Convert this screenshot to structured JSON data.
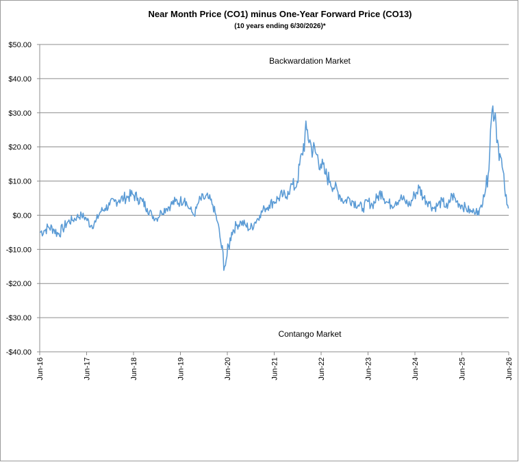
{
  "chart_data": {
    "type": "line",
    "title": "Near Month Price (CO1) minus One-Year Forward Price (CO13)",
    "subtitle": "(10 years ending  6/30/2026)*",
    "xlabel": "",
    "ylabel": "",
    "ylim": [
      -40,
      50
    ],
    "yticks": [
      50,
      40,
      30,
      20,
      10,
      0,
      -10,
      -20,
      -30,
      -40
    ],
    "ytick_labels": [
      "$50.00",
      "$40.00",
      "$30.00",
      "$20.00",
      "$10.00",
      "$0.00",
      "-$10.00",
      "-$20.00",
      "-$30.00",
      "-$40.00"
    ],
    "xlim": [
      2016.458,
      2026.458
    ],
    "xtick_labels": [
      "Jun-16",
      "Jun-17",
      "Jun-18",
      "Jun-19",
      "Jun-20",
      "Jun-21",
      "Jun-22",
      "Jun-23",
      "Jun-24",
      "Jun-25",
      "Jun-26"
    ],
    "grid": "horizontal",
    "legend": "none",
    "line_color": "#5b9bd5",
    "annotations": [
      "Backwardation Market",
      "Contango Market"
    ],
    "series": [
      {
        "x": [
          2016.46,
          2016.55,
          2016.65,
          2016.75,
          2016.85,
          2016.95,
          2017.05,
          2017.15,
          2017.25,
          2017.35,
          2017.45,
          2017.55,
          2017.65,
          2017.75,
          2017.85,
          2017.95,
          2018.05,
          2018.15,
          2018.25,
          2018.35,
          2018.45,
          2018.55,
          2018.65,
          2018.75,
          2018.85,
          2018.95,
          2019.05,
          2019.15,
          2019.25,
          2019.35,
          2019.45,
          2019.55,
          2019.6,
          2019.65,
          2019.7,
          2019.75,
          2019.8,
          2019.85,
          2019.95,
          2020.05,
          2020.15,
          2020.25,
          2020.32,
          2020.4,
          2020.45,
          2020.55,
          2020.65,
          2020.75,
          2020.85,
          2020.95,
          2021.05,
          2021.15,
          2021.25,
          2021.35,
          2021.45,
          2021.55,
          2021.65,
          2021.7,
          2021.75,
          2021.8,
          2021.85,
          2021.9,
          2021.95,
          2022.05,
          2022.15,
          2022.25,
          2022.35,
          2022.45,
          2022.55,
          2022.65,
          2022.75,
          2022.85,
          2022.95,
          2023.05,
          2023.15,
          2023.25,
          2023.35,
          2023.45,
          2023.55,
          2023.65,
          2023.75,
          2023.85,
          2023.95,
          2024.05,
          2024.15,
          2024.25,
          2024.35,
          2024.45,
          2024.55,
          2024.65,
          2024.75,
          2024.85,
          2024.95,
          2025.05,
          2025.15,
          2025.25,
          2025.35,
          2025.45,
          2025.55,
          2025.65,
          2025.72,
          2025.77,
          2025.82,
          2025.87,
          2025.92,
          2025.97,
          2026.02,
          2026.07,
          2026.12,
          2026.17,
          2026.22,
          2026.27,
          2026.32,
          2026.37,
          2026.42,
          2026.45
        ],
        "y": [
          -5,
          -4.5,
          -3.5,
          -4,
          -5.5,
          -4,
          -2,
          -1.5,
          -0.5,
          0,
          -1,
          -3,
          -2,
          1,
          2,
          3,
          4,
          4.5,
          5,
          5.5,
          6,
          5,
          4,
          2,
          0,
          -1,
          1,
          2,
          3,
          4,
          4,
          5,
          3,
          2,
          1,
          0,
          2,
          4,
          5,
          5,
          3,
          -2,
          -8,
          -15,
          -12,
          -5,
          -3,
          -2,
          -3,
          -4,
          -2,
          0,
          2,
          3,
          4,
          5,
          6,
          5,
          7,
          8,
          9,
          8,
          10,
          18,
          25,
          20,
          18,
          15,
          12,
          10,
          8,
          6,
          4,
          5,
          4,
          3,
          2,
          4,
          3,
          5,
          7,
          4,
          3,
          4,
          5,
          4,
          3,
          6,
          8,
          5,
          4,
          2,
          3,
          4,
          2,
          6,
          4,
          3,
          2,
          1,
          1,
          2,
          0,
          3,
          6,
          8,
          12,
          25,
          32,
          30,
          22,
          18,
          14,
          8,
          3,
          2
        ]
      }
    ]
  }
}
